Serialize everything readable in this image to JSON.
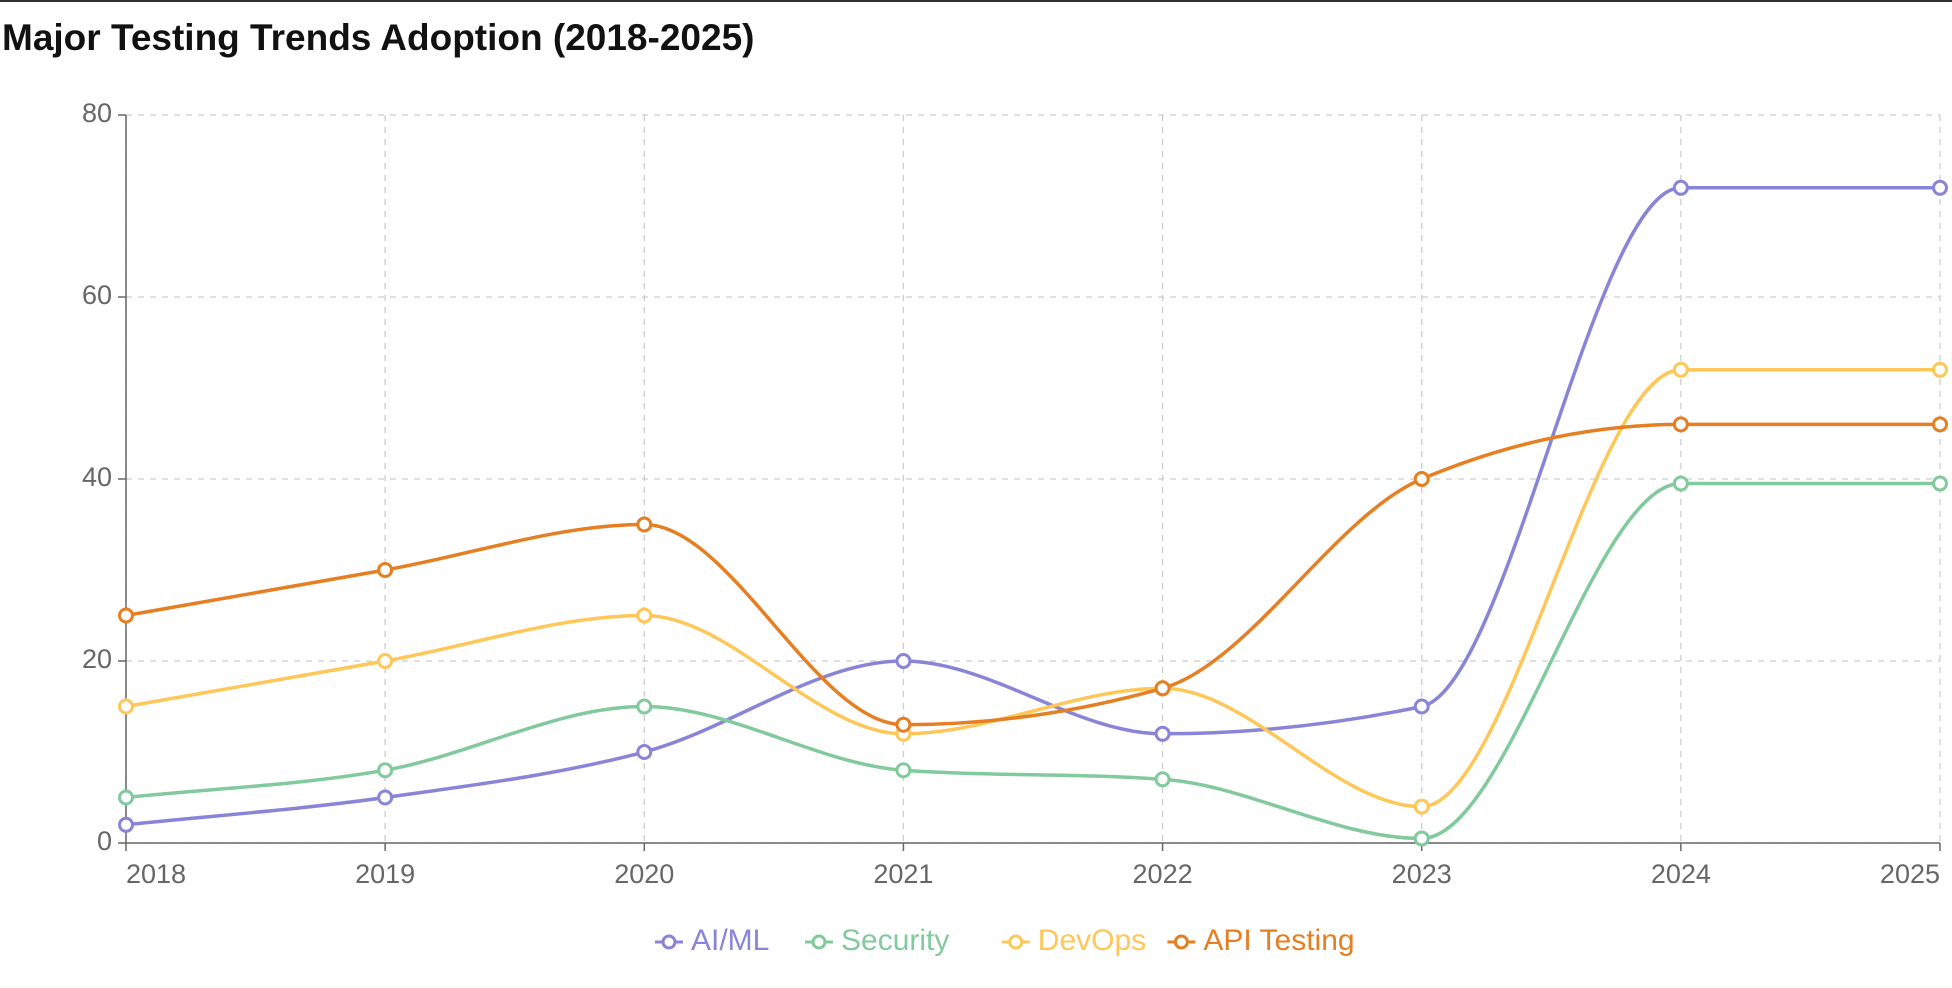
{
  "chart_data": {
    "type": "line",
    "title": "Major Testing Trends Adoption (2018-2025)",
    "categories": [
      "2018",
      "2019",
      "2020",
      "2021",
      "2022",
      "2023",
      "2024",
      "2025"
    ],
    "series": [
      {
        "name": "AI/ML",
        "color": "#8884d8",
        "values": [
          2,
          5,
          10,
          20,
          12,
          15,
          72,
          72
        ]
      },
      {
        "name": "Security",
        "color": "#82ca9d",
        "values": [
          5,
          8,
          15,
          8,
          7,
          0.5,
          39.5,
          39.5
        ]
      },
      {
        "name": "DevOps",
        "color": "#ffc658",
        "values": [
          15,
          20,
          25,
          12,
          17,
          4,
          52,
          52
        ]
      },
      {
        "name": "API Testing",
        "color": "#e67e22",
        "values": [
          25,
          30,
          35,
          13,
          17,
          40,
          46,
          46
        ]
      }
    ],
    "ylim": [
      0,
      80
    ],
    "yticks": [
      0,
      20,
      40,
      60,
      80
    ],
    "grid": true,
    "curve": "monotone",
    "legend": "bottom"
  }
}
